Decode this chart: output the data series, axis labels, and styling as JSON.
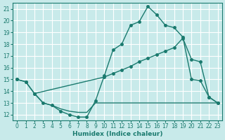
{
  "bg_color": "#c8eaea",
  "grid_color": "#ffffff",
  "line_color": "#1a7a6e",
  "xlabel": "Humidex (Indice chaleur)",
  "xlim": [
    -0.5,
    23.5
  ],
  "ylim": [
    11.5,
    21.5
  ],
  "xticks": [
    0,
    1,
    2,
    3,
    4,
    5,
    6,
    7,
    8,
    9,
    10,
    11,
    12,
    13,
    14,
    15,
    16,
    17,
    18,
    19,
    20,
    21,
    22,
    23
  ],
  "yticks": [
    12,
    13,
    14,
    15,
    16,
    17,
    18,
    19,
    20,
    21
  ],
  "line_wavy_x": [
    0,
    1,
    2,
    3,
    4,
    5,
    6,
    7,
    8,
    9,
    10,
    11,
    12,
    13,
    14,
    15,
    16,
    17,
    18,
    19,
    20,
    21,
    22,
    23
  ],
  "line_wavy_y": [
    15.0,
    14.8,
    13.8,
    13.0,
    12.8,
    12.3,
    12.0,
    11.8,
    11.8,
    13.2,
    15.3,
    17.5,
    18.0,
    19.6,
    19.9,
    21.2,
    20.5,
    19.6,
    19.4,
    18.6,
    15.0,
    14.9,
    13.5,
    13.0
  ],
  "line_diag_x": [
    0,
    1,
    2,
    10,
    11,
    12,
    13,
    14,
    15,
    16,
    17,
    18,
    19,
    20,
    21,
    22,
    23
  ],
  "line_diag_y": [
    15.0,
    14.8,
    13.8,
    15.2,
    15.5,
    15.8,
    16.1,
    16.5,
    16.8,
    17.1,
    17.4,
    17.7,
    18.5,
    16.7,
    16.5,
    13.5,
    13.0
  ],
  "line_flat_x": [
    2,
    3,
    4,
    5,
    6,
    7,
    8,
    9,
    10,
    11,
    12,
    13,
    14,
    15,
    16,
    17,
    18,
    19,
    20,
    21,
    22,
    23
  ],
  "line_flat_y": [
    13.8,
    13.0,
    12.8,
    12.5,
    12.3,
    12.2,
    12.2,
    13.0,
    13.0,
    13.0,
    13.0,
    13.0,
    13.0,
    13.0,
    13.0,
    13.0,
    13.0,
    13.0,
    13.0,
    13.0,
    13.0,
    13.0
  ]
}
